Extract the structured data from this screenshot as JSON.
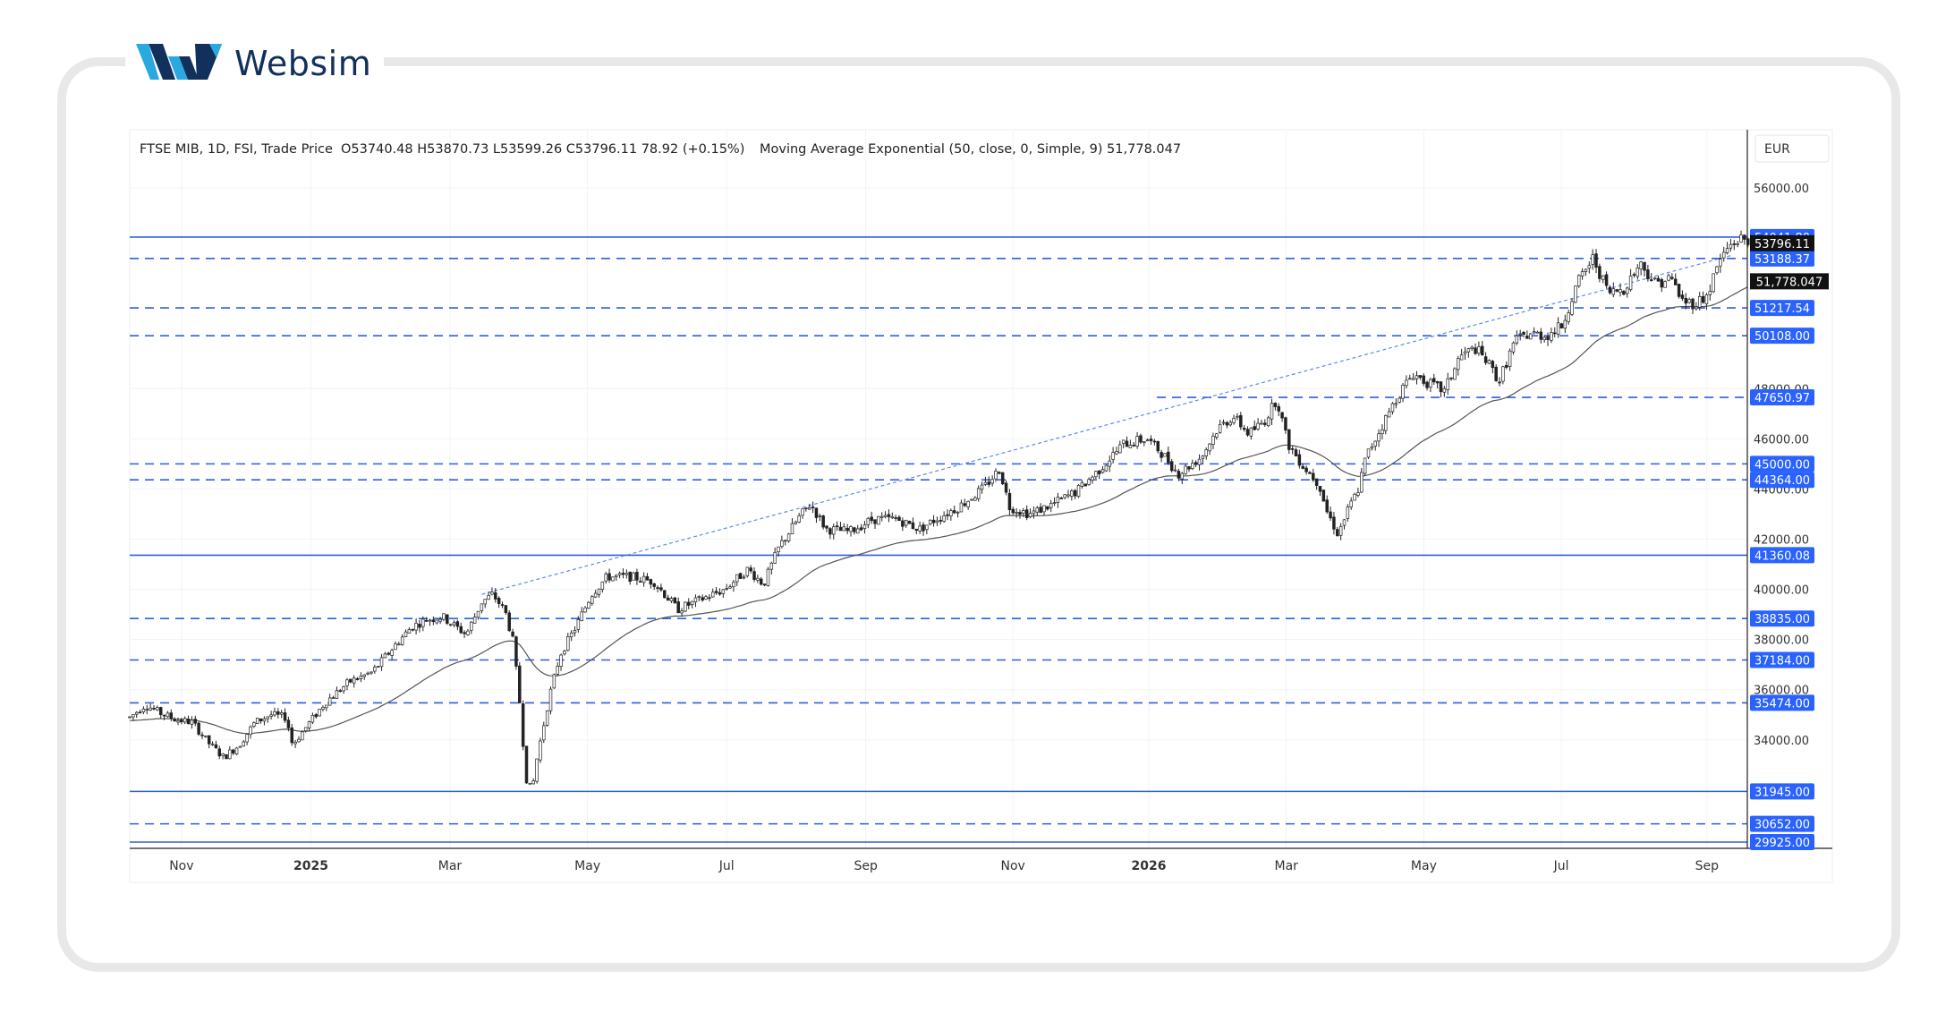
{
  "brand": {
    "name": "Websim",
    "logo_icon": "websim-w-logo",
    "colors": {
      "navy": "#12305c",
      "cyan": "#2aa8e0"
    }
  },
  "header": {
    "symbol_line": "FTSE MIB, 1D, FSI, Trade Price",
    "ohlc": "O53740.48  H53870.73  L53599.26  C53796.11  78.92 (+0.15%)",
    "indicator": "Moving Average Exponential (50, close, 0, Simple, 9)  51,778.047"
  },
  "currency": "EUR",
  "chart_data": {
    "type": "candlestick",
    "instrument": "FTSE MIB",
    "timeframe": "1D",
    "ylim": [
      29700,
      57000
    ],
    "x_tick_labels": [
      {
        "label": "Nov",
        "bold": false
      },
      {
        "label": "2025",
        "bold": true
      },
      {
        "label": "Mar",
        "bold": false
      },
      {
        "label": "May",
        "bold": false
      },
      {
        "label": "Jul",
        "bold": false
      },
      {
        "label": "Sep",
        "bold": false
      },
      {
        "label": "Nov",
        "bold": false
      },
      {
        "label": "2026",
        "bold": true
      },
      {
        "label": "Mar",
        "bold": false
      },
      {
        "label": "May",
        "bold": false
      },
      {
        "label": "Jul",
        "bold": false
      },
      {
        "label": "Sep",
        "bold": false
      }
    ],
    "y_ticks": [
      {
        "label": "56000.00",
        "value": 56000
      },
      {
        "label": "48000.00",
        "value": 48000
      },
      {
        "label": "46000.00",
        "value": 46000
      },
      {
        "label": "44000.00",
        "value": 44000
      },
      {
        "label": "42000.00",
        "value": 42000
      },
      {
        "label": "40000.00",
        "value": 40000
      },
      {
        "label": "38000.00",
        "value": 38000
      },
      {
        "label": "36000.00",
        "value": 36000
      },
      {
        "label": "34000.00",
        "value": 34000
      }
    ],
    "levels": [
      {
        "value": 54041.8,
        "label": "54041.80",
        "style": "solid",
        "start": 0
      },
      {
        "value": 53188.37,
        "label": "53188.37",
        "style": "dashed",
        "start": 0
      },
      {
        "value": 51217.54,
        "label": "51217.54",
        "style": "dashed",
        "start": 0
      },
      {
        "value": 50108.0,
        "label": "50108.00",
        "style": "dashed",
        "start": 0
      },
      {
        "value": 47650.97,
        "label": "47650.97",
        "style": "dashed",
        "start": 0.635
      },
      {
        "value": 45000.0,
        "label": "45000.00",
        "style": "dashed",
        "start": 0
      },
      {
        "value": 44364.0,
        "label": "44364.00",
        "style": "dashed",
        "start": 0
      },
      {
        "value": 41360.08,
        "label": "41360.08",
        "style": "solid",
        "start": 0
      },
      {
        "value": 38835.0,
        "label": "38835.00",
        "style": "dashed",
        "start": 0
      },
      {
        "value": 37184.0,
        "label": "37184.00",
        "style": "dashed",
        "start": 0
      },
      {
        "value": 35474.0,
        "label": "35474.00",
        "style": "dashed",
        "start": 0
      },
      {
        "value": 31945.0,
        "label": "31945.00",
        "style": "solid",
        "start": 0
      },
      {
        "value": 30652.0,
        "label": "30652.00",
        "style": "dashed",
        "start": 0
      },
      {
        "value": 29925.0,
        "label": "29925.00",
        "style": "solid",
        "start": 0
      }
    ],
    "last_price": {
      "value": 53796.11,
      "label": "53796.11"
    },
    "ema": {
      "value": 51778.047,
      "label": "51,778.047"
    },
    "trendline": {
      "from": [
        0.225,
        39800
      ],
      "to": [
        1.0,
        53300
      ],
      "style": "dotted"
    },
    "series_path": [
      [
        0.0,
        34900
      ],
      [
        0.01,
        35400
      ],
      [
        0.02,
        35050
      ],
      [
        0.03,
        34800
      ],
      [
        0.04,
        34700
      ],
      [
        0.05,
        33900
      ],
      [
        0.06,
        33300
      ],
      [
        0.07,
        33800
      ],
      [
        0.08,
        34700
      ],
      [
        0.09,
        35000
      ],
      [
        0.1,
        34900
      ],
      [
        0.104,
        33800
      ],
      [
        0.115,
        34700
      ],
      [
        0.125,
        35500
      ],
      [
        0.14,
        36300
      ],
      [
        0.155,
        36700
      ],
      [
        0.17,
        37800
      ],
      [
        0.18,
        38500
      ],
      [
        0.19,
        38800
      ],
      [
        0.2,
        38900
      ],
      [
        0.215,
        38200
      ],
      [
        0.225,
        39500
      ],
      [
        0.232,
        39800
      ],
      [
        0.24,
        39100
      ],
      [
        0.245,
        37900
      ],
      [
        0.25,
        35000
      ],
      [
        0.253,
        32500
      ],
      [
        0.257,
        31950
      ],
      [
        0.26,
        33200
      ],
      [
        0.268,
        35700
      ],
      [
        0.275,
        37400
      ],
      [
        0.285,
        38500
      ],
      [
        0.295,
        39800
      ],
      [
        0.305,
        40500
      ],
      [
        0.32,
        40500
      ],
      [
        0.335,
        40300
      ],
      [
        0.35,
        39200
      ],
      [
        0.365,
        39600
      ],
      [
        0.38,
        40000
      ],
      [
        0.395,
        40800
      ],
      [
        0.405,
        40200
      ],
      [
        0.415,
        41700
      ],
      [
        0.428,
        42900
      ],
      [
        0.435,
        43400
      ],
      [
        0.445,
        42400
      ],
      [
        0.46,
        42300
      ],
      [
        0.475,
        42800
      ],
      [
        0.49,
        42800
      ],
      [
        0.505,
        42400
      ],
      [
        0.515,
        42800
      ],
      [
        0.53,
        43300
      ],
      [
        0.545,
        44000
      ],
      [
        0.556,
        44800
      ],
      [
        0.562,
        43300
      ],
      [
        0.575,
        43000
      ],
      [
        0.59,
        43400
      ],
      [
        0.605,
        43900
      ],
      [
        0.62,
        44800
      ],
      [
        0.635,
        45800
      ],
      [
        0.65,
        46000
      ],
      [
        0.66,
        45400
      ],
      [
        0.67,
        44600
      ],
      [
        0.685,
        45300
      ],
      [
        0.695,
        46400
      ],
      [
        0.705,
        46900
      ],
      [
        0.715,
        46200
      ],
      [
        0.725,
        46700
      ],
      [
        0.733,
        47600
      ],
      [
        0.74,
        45800
      ],
      [
        0.75,
        44900
      ],
      [
        0.76,
        44200
      ],
      [
        0.765,
        43100
      ],
      [
        0.772,
        42200
      ],
      [
        0.778,
        43100
      ],
      [
        0.785,
        44000
      ],
      [
        0.79,
        45300
      ],
      [
        0.8,
        46500
      ],
      [
        0.81,
        47700
      ],
      [
        0.82,
        48600
      ],
      [
        0.83,
        48200
      ],
      [
        0.84,
        47900
      ],
      [
        0.85,
        49300
      ],
      [
        0.86,
        49600
      ],
      [
        0.868,
        49000
      ],
      [
        0.875,
        48300
      ],
      [
        0.885,
        49900
      ],
      [
        0.895,
        50200
      ],
      [
        0.905,
        50100
      ],
      [
        0.915,
        50500
      ],
      [
        0.925,
        52200
      ],
      [
        0.935,
        53200
      ],
      [
        0.945,
        51800
      ],
      [
        0.955,
        52000
      ],
      [
        0.965,
        53000
      ],
      [
        0.975,
        52200
      ],
      [
        0.985,
        52400
      ],
      [
        0.992,
        51500
      ],
      [
        1.0,
        51400
      ],
      [
        1.008,
        51700
      ],
      [
        1.015,
        53000
      ],
      [
        1.022,
        53700
      ],
      [
        1.03,
        54000
      ],
      [
        1.034,
        53796
      ]
    ]
  }
}
